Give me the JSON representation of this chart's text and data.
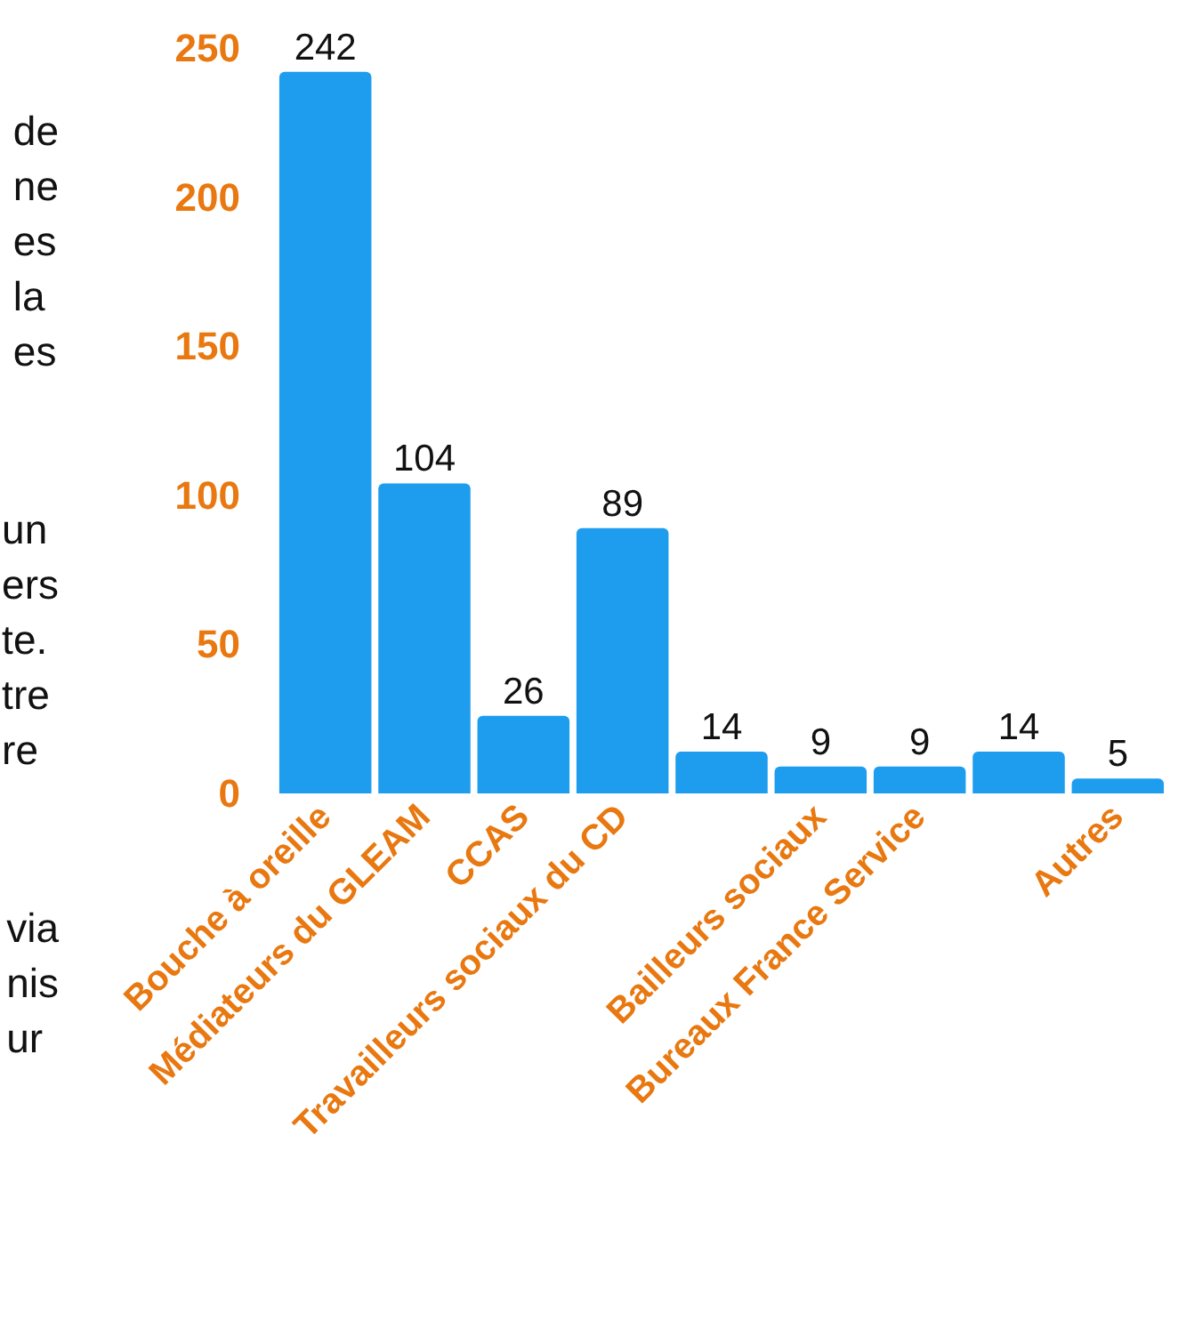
{
  "chart_data": {
    "type": "bar",
    "categories": [
      "Bouche à oreille",
      "Médiateurs du GLEAM",
      "CCAS",
      "Travailleurs sociaux du CD",
      null,
      "Bailleurs sociaux",
      "Bureaux France Service",
      null,
      "Autres"
    ],
    "values": [
      242,
      104,
      26,
      89,
      14,
      9,
      9,
      14,
      5
    ],
    "color": "#1e9def",
    "ylim": [
      0,
      250
    ],
    "yticks": [
      0,
      50,
      100,
      150,
      200,
      250
    ],
    "grid": false,
    "data_labels": true,
    "annotations": [
      "de\nne\nes\nla\nes",
      "un\ners\nte.\ntre\nre",
      "via\nnis\nur"
    ]
  }
}
